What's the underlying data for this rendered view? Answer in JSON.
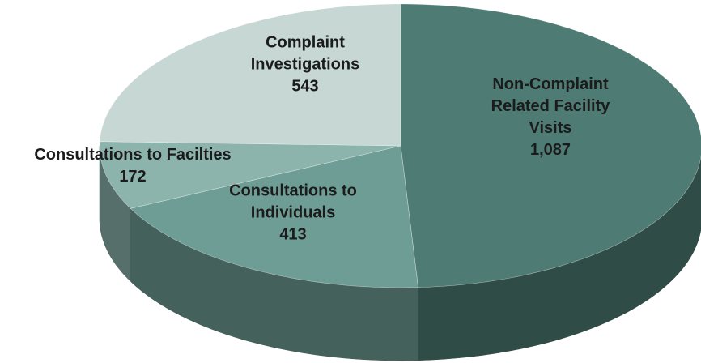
{
  "chart_data": {
    "type": "pie",
    "categories": [
      "Non-Complaint Related Facility Visits",
      "Consultations to Individuals",
      "Consultations to Facilties",
      "Complaint Investigations"
    ],
    "values": [
      1087,
      413,
      172,
      543
    ],
    "value_labels": [
      "1,087",
      "413",
      "172",
      "543"
    ],
    "colors": [
      "#4e7b73",
      "#6e9d95",
      "#8db3ad",
      "#c6d7d4"
    ],
    "start_angle": 0,
    "direction": "clockwise",
    "three_d": true
  }
}
